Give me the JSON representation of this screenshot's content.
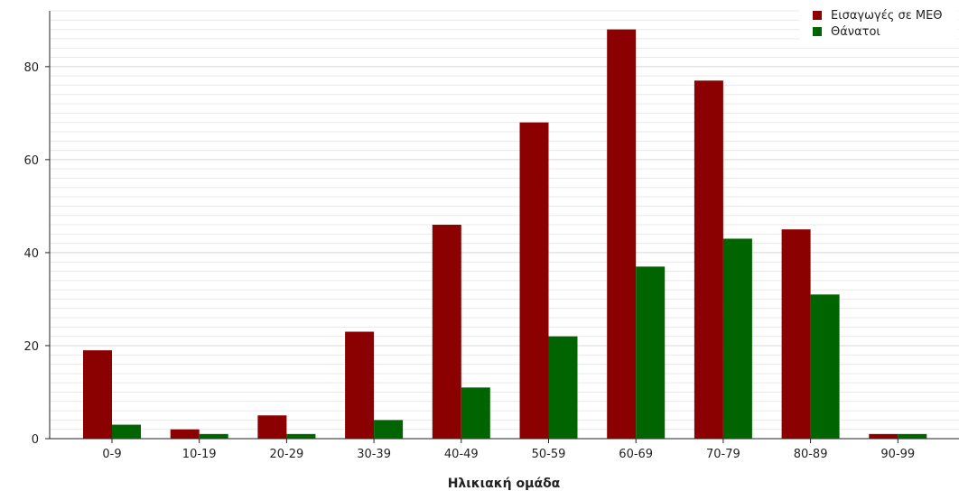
{
  "chart_data": {
    "type": "bar",
    "categories": [
      "0-9",
      "10-19",
      "20-29",
      "30-39",
      "40-49",
      "50-59",
      "60-69",
      "70-79",
      "80-89",
      "90-99"
    ],
    "series": [
      {
        "name": "Εισαγωγές σε ΜΕΘ",
        "color": "#8b0000",
        "values": [
          19,
          2,
          5,
          23,
          46,
          68,
          88,
          77,
          45,
          1
        ]
      },
      {
        "name": "Θάνατοι",
        "color": "#006400",
        "values": [
          3,
          1,
          1,
          4,
          11,
          22,
          37,
          43,
          31,
          1
        ]
      }
    ],
    "xlabel": "Ηλικιακή ομάδα",
    "ylabel": "",
    "ylim": [
      0,
      92
    ],
    "yticks": [
      0,
      20,
      40,
      60,
      80
    ],
    "grid": true,
    "legend": "top-right"
  }
}
